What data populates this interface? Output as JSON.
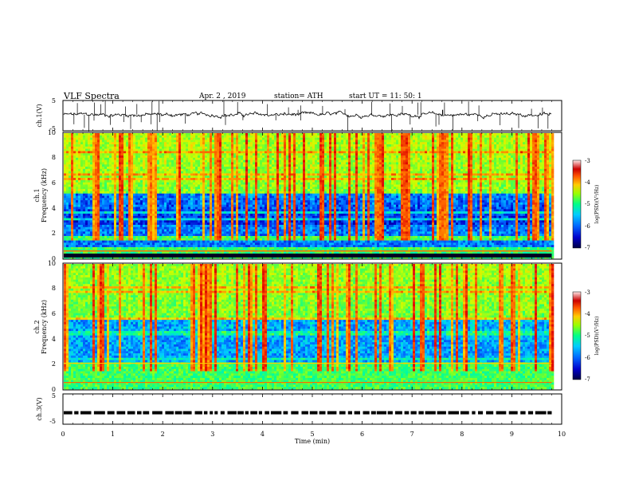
{
  "header": {
    "title": "VLF Spectra",
    "date": "Apr. 2 , 2019",
    "station": "station= ATH",
    "start_ut": "start UT = 11: 50: 1"
  },
  "chart_data": [
    {
      "type": "line",
      "id": "ch1_voltage",
      "ylabel": "ch.1(V)",
      "ylim": [
        -5,
        5
      ],
      "yticks": [
        "5",
        "-5"
      ],
      "x_unit": "min",
      "x_range": [
        0,
        9.8
      ],
      "baseline": 0.3,
      "trace_color": "#000000"
    },
    {
      "type": "heatmap",
      "id": "ch1_spectrogram",
      "ylabel": "Frequency (kHz)",
      "ylabel2": "ch.1",
      "ylim": [
        0,
        10
      ],
      "yticks": [
        "0",
        "2",
        "4",
        "6",
        "8",
        "10"
      ],
      "x_range": [
        0,
        9.8
      ],
      "colorbar": {
        "label": "log(PSD)(V²/Hz)",
        "range": [
          -7,
          -3
        ],
        "ticks": [
          "-3",
          "-4",
          "-5",
          "-6",
          "-7"
        ]
      }
    },
    {
      "type": "heatmap",
      "id": "ch2_spectrogram",
      "ylabel": "Frequency (kHz)",
      "ylabel2": "ch.2",
      "ylim": [
        0,
        10
      ],
      "yticks": [
        "0",
        "2",
        "4",
        "6",
        "8",
        "10"
      ],
      "x_range": [
        0,
        9.8
      ],
      "colorbar": {
        "label": "log(PSD)(V²/Hz)",
        "range": [
          -7,
          -3
        ],
        "ticks": [
          "-3",
          "-4",
          "-5",
          "-6",
          "-7"
        ]
      }
    },
    {
      "type": "line",
      "id": "ch3_voltage",
      "ylabel": "ch.3(V)",
      "ylim": [
        -5,
        5
      ],
      "yticks": [
        "5",
        "-5"
      ],
      "x_range": [
        0,
        9.8
      ],
      "level": -1.2,
      "trace_color": "#000000"
    }
  ],
  "xaxis": {
    "label": "Time (min)",
    "range": [
      0,
      10
    ],
    "ticks": [
      "0",
      "1",
      "2",
      "3",
      "4",
      "5",
      "6",
      "7",
      "8",
      "9",
      "10"
    ]
  },
  "colors": {
    "colormap": [
      "#000044",
      "#0000cc",
      "#0066ff",
      "#00ccff",
      "#00ff99",
      "#66ff33",
      "#ccff00",
      "#ffcc00",
      "#ff6600",
      "#dd0000",
      "#ffdddd"
    ]
  }
}
